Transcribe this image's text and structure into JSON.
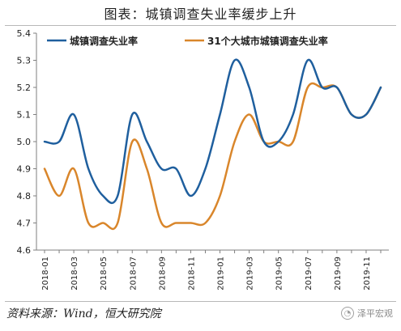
{
  "title": "图表：城镇调查失业率缓步上升",
  "source": "资料来源：Wind，恒大研究院",
  "watermark": {
    "text": "泽平宏观",
    "icon": "wechat-logo"
  },
  "chart_data": {
    "type": "line",
    "title": "图表：城镇调查失业率缓步上升",
    "xlabel": "",
    "ylabel": "",
    "ylim": [
      4.6,
      5.4
    ],
    "yticks": [
      4.6,
      4.7,
      4.8,
      4.9,
      5.0,
      5.1,
      5.2,
      5.3,
      5.4
    ],
    "ytick_labels": [
      "4.6",
      "4.7",
      "4.8",
      "4.9",
      "5.0",
      "5.1",
      "5.2",
      "5.3",
      "5.4"
    ],
    "x": [
      "2018-01",
      "2018-02",
      "2018-03",
      "2018-04",
      "2018-05",
      "2018-06",
      "2018-07",
      "2018-08",
      "2018-09",
      "2018-10",
      "2018-11",
      "2018-12",
      "2019-01",
      "2019-02",
      "2019-03",
      "2019-04",
      "2019-05",
      "2019-06",
      "2019-07",
      "2019-08",
      "2019-09",
      "2019-10",
      "2019-11",
      "2019-12"
    ],
    "xtick_labels": [
      "2018-01",
      "2018-03",
      "2018-05",
      "2018-07",
      "2018-09",
      "2018-11",
      "2019-01",
      "2019-03",
      "2019-05",
      "2019-07",
      "2019-09",
      "2019-11"
    ],
    "grid": false,
    "legend_position": "top-left",
    "series": [
      {
        "name": "城镇调查失业率",
        "color": "#1f5f9e",
        "values": [
          5.0,
          5.0,
          5.1,
          4.9,
          4.8,
          4.8,
          5.1,
          5.0,
          4.9,
          4.9,
          4.8,
          4.9,
          5.1,
          5.3,
          5.2,
          5.0,
          5.0,
          5.1,
          5.3,
          5.2,
          5.2,
          5.1,
          5.1,
          5.2
        ]
      },
      {
        "name": "31个大城市城镇调查失业率",
        "color": "#d9862b",
        "values": [
          4.9,
          4.8,
          4.9,
          4.7,
          4.7,
          4.7,
          5.0,
          4.9,
          4.7,
          4.7,
          4.7,
          4.7,
          4.8,
          5.0,
          5.1,
          5.0,
          5.0,
          5.0,
          5.2,
          5.2,
          5.2,
          5.1,
          5.1,
          5.2
        ]
      }
    ]
  }
}
